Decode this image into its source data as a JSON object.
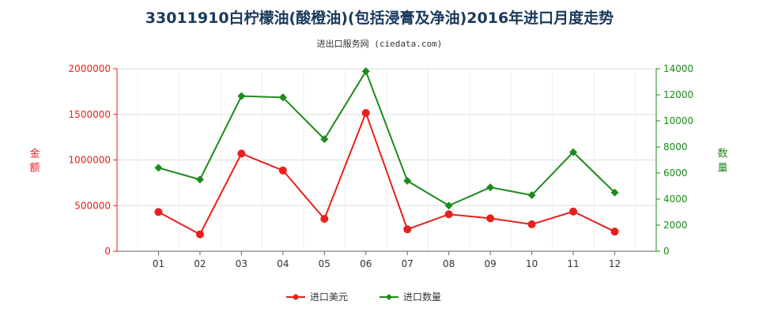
{
  "chart_data": {
    "type": "line",
    "title": "33011910白柠檬油(酸橙油)(包括浸膏及净油)2016年进口月度走势",
    "subtitle": "进出口服务网 (ciedata.com)",
    "categories": [
      "01",
      "02",
      "03",
      "04",
      "05",
      "06",
      "07",
      "08",
      "09",
      "10",
      "11",
      "12"
    ],
    "y_left": {
      "label": "金额",
      "range": [
        0,
        2000000
      ],
      "ticks": [
        "0",
        "500000",
        "1000000",
        "1500000",
        "2000000"
      ],
      "color": "#e8201c"
    },
    "y_right": {
      "label": "数量",
      "range": [
        0,
        14000
      ],
      "ticks": [
        "0",
        "2000",
        "4000",
        "6000",
        "8000",
        "10000",
        "12000",
        "14000"
      ],
      "color": "#1c8a1c"
    },
    "series": [
      {
        "name": "进口美元",
        "axis": "left",
        "color": "#e8201c",
        "marker": "circle",
        "values": [
          430000,
          185000,
          1070000,
          885000,
          355000,
          1515000,
          240000,
          405000,
          360000,
          295000,
          435000,
          215000
        ]
      },
      {
        "name": "进口数量",
        "axis": "right",
        "color": "#1c8a1c",
        "marker": "diamond",
        "values": [
          6400,
          5500,
          11900,
          11800,
          8600,
          13800,
          5400,
          3500,
          4900,
          4300,
          7600,
          4500
        ]
      }
    ],
    "grid": true,
    "legend_position": "bottom-center"
  }
}
